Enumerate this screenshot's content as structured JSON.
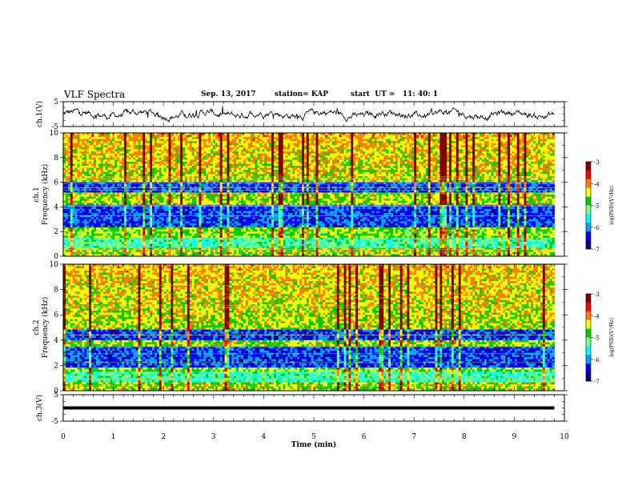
{
  "header": {
    "title": "VLF Spectra",
    "date": "Sep. 13, 2017",
    "station": "station= KAP",
    "start": "start  UT =   11: 40: 1"
  },
  "chart_data": {
    "type": "heatmap",
    "x_axis": {
      "label": "Time (min)",
      "range": [
        0,
        10
      ],
      "ticks": [
        "0",
        "1",
        "2",
        "3",
        "4",
        "5",
        "6",
        "7",
        "8",
        "9",
        "10"
      ]
    },
    "panels": [
      {
        "id": "ch1-waveform",
        "type": "line",
        "ylabel": "ch.1(V)",
        "ylim": [
          -5,
          5
        ],
        "ytick_labels": [
          "5",
          "-5"
        ],
        "data_extent_min": 9.8
      },
      {
        "id": "ch1-spectrogram",
        "type": "heatmap",
        "ylabel": "ch.1 Frequency (kHz)",
        "ylabel_lines": [
          "ch.1",
          "Frequency (kHz)"
        ],
        "ylim": [
          0,
          10
        ],
        "ytick_labels": [
          "0",
          "2",
          "4",
          "6",
          "8",
          "10"
        ],
        "low_power_bands_khz": [
          [
            2.4,
            4.2
          ],
          [
            5.2,
            6.0
          ]
        ],
        "data_extent_min": 9.8
      },
      {
        "id": "ch2-spectrogram",
        "type": "heatmap",
        "ylabel": "ch.2 Frequency (kHz)",
        "ylabel_lines": [
          "ch.2",
          "Frequency (kHz)"
        ],
        "ylim": [
          0,
          10
        ],
        "ytick_labels": [
          "0",
          "2",
          "4",
          "6",
          "8",
          "10"
        ],
        "low_power_bands_khz": [
          [
            1.8,
            3.5
          ],
          [
            4.0,
            4.8
          ]
        ],
        "data_extent_min": 9.8
      },
      {
        "id": "ch3-waveform",
        "type": "line",
        "ylabel": "ch.3(V)",
        "ylim": [
          -5,
          5
        ],
        "ytick_labels": [
          "5",
          "-5"
        ],
        "constant_level_v": 0,
        "data_extent_min": 9.8
      }
    ],
    "colorbar": {
      "label": "log(PSD)(V²/Hz)",
      "range": [
        -7,
        -3
      ],
      "tick_labels": [
        "-3",
        "-4",
        "-5",
        "-6",
        "-7"
      ]
    },
    "colormap": [
      "#00007f",
      "#0000ff",
      "#00a0ff",
      "#00ffff",
      "#80ff80",
      "#00cc00",
      "#ffff00",
      "#ff8000",
      "#ff0000",
      "#7f0000"
    ]
  }
}
